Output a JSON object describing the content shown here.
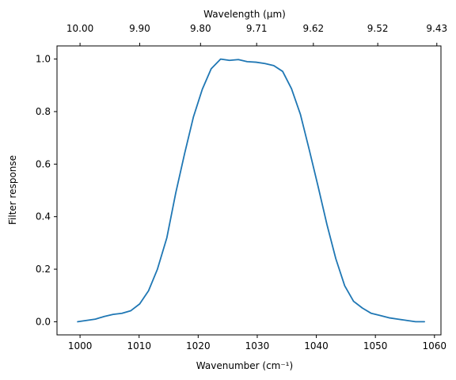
{
  "chart_data": {
    "type": "line",
    "xlabel": "Wavenumber (cm⁻¹)",
    "ylabel": "Filter response",
    "top_xlabel": "Wavelength (μm)",
    "xlim": [
      996.1,
      1061.1
    ],
    "ylim": [
      -0.05,
      1.05
    ],
    "grid": false,
    "colors": {
      "line": "#1f77b4"
    },
    "x_ticks": [
      1000,
      1010,
      1020,
      1030,
      1040,
      1050,
      1060
    ],
    "x_tick_labels": [
      "1000",
      "1010",
      "1020",
      "1030",
      "1040",
      "1050",
      "1060"
    ],
    "y_ticks": [
      0.0,
      0.2,
      0.4,
      0.6,
      0.8,
      1.0
    ],
    "y_tick_labels": [
      "0.0",
      "0.2",
      "0.4",
      "0.6",
      "0.8",
      "1.0"
    ],
    "top_ticks": [
      1000.0,
      1010.1,
      1020.4,
      1029.9,
      1039.5,
      1050.4,
      1060.4
    ],
    "top_tick_labels": [
      "10.00",
      "9.90",
      "9.80",
      "9.71",
      "9.62",
      "9.52",
      "9.43"
    ],
    "series": [
      {
        "x": [
          999.6,
          1001.1,
          1002.6,
          1004.1,
          1005.6,
          1007.1,
          1008.6,
          1010.1,
          1011.6,
          1013.1,
          1014.7,
          1016.2,
          1017.7,
          1019.2,
          1020.7,
          1022.2,
          1023.8,
          1025.3,
          1026.8,
          1028.3,
          1029.8,
          1031.3,
          1032.8,
          1034.3,
          1035.8,
          1037.3,
          1038.8,
          1040.3,
          1041.8,
          1043.3,
          1044.8,
          1046.3,
          1047.8,
          1049.3,
          1050.8,
          1052.3,
          1053.8,
          1055.3,
          1056.8,
          1058.3
        ],
        "y": [
          0.0,
          0.005,
          0.01,
          0.02,
          0.028,
          0.032,
          0.042,
          0.068,
          0.118,
          0.2,
          0.32,
          0.49,
          0.64,
          0.78,
          0.885,
          0.963,
          1.0,
          0.995,
          0.998,
          0.99,
          0.988,
          0.983,
          0.975,
          0.953,
          0.887,
          0.79,
          0.655,
          0.515,
          0.37,
          0.24,
          0.137,
          0.078,
          0.052,
          0.032,
          0.024,
          0.015,
          0.01,
          0.005,
          0.0,
          0.0
        ]
      }
    ]
  }
}
